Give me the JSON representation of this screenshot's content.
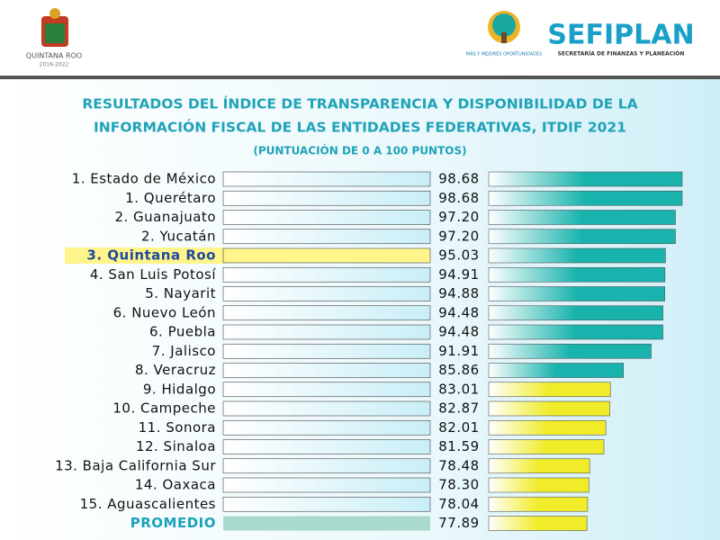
{
  "header": {
    "left_logo_text": "QUINTANA ROO",
    "left_logo_years": "2016-2022",
    "right_logo_text": "MÁS Y MEJORES OPORTUNIDADES",
    "brand": "SEFIPLAN",
    "brand_subtitle": "SECRETARÍA DE FINANZAS Y PLANEACIÓN"
  },
  "chart_data": {
    "type": "hbar",
    "title": [
      "RESULTADOS DEL ÍNDICE DE TRANSPARENCIA Y DISPONIBILIDAD DE LA",
      "INFORMACIÓN FISCAL DE LAS ENTIDADES FEDERATIVAS, ITDIF 2021"
    ],
    "subtitle": "(PUNTUACIÓN DE 0 A 100 PUNTOS)",
    "categories": [
      "1. Estado de México",
      "1. Querétaro",
      "2. Guanajuato",
      "2. Yucatán",
      "3. Quintana Roo",
      "4. San Luis Potosí",
      "5. Nayarit",
      "6. Nuevo León",
      "6. Puebla",
      "7. Jalisco",
      "8. Veracruz",
      "9. Hidalgo",
      "10. Campeche",
      "11. Sonora",
      "12. Sinaloa",
      "13. Baja California Sur",
      "14. Oaxaca",
      "15. Aguascalientes",
      "PROMEDIO"
    ],
    "values": [
      98.68,
      98.68,
      97.2,
      97.2,
      95.03,
      94.91,
      94.88,
      94.48,
      94.48,
      91.91,
      85.86,
      83.01,
      82.87,
      82.01,
      81.59,
      78.48,
      78.3,
      78.04,
      77.89
    ],
    "value_labels": [
      "98.68",
      "98.68",
      "97.20",
      "97.20",
      "95.03",
      "94.91",
      "94.88",
      "94.48",
      "94.48",
      "91.91",
      "85.86",
      "83.01",
      "82.87",
      "82.01",
      "81.59",
      "78.48",
      "78.30",
      "78.04",
      "77.89"
    ],
    "colors": [
      "#18b3ad",
      "#18b3ad",
      "#18b3ad",
      "#18b3ad",
      "#18b3ad",
      "#18b3ad",
      "#18b3ad",
      "#18b3ad",
      "#18b3ad",
      "#18b3ad",
      "#18b3ad",
      "#f0ec2a",
      "#f0ec2a",
      "#f0ec2a",
      "#f0ec2a",
      "#f0ec2a",
      "#f0ec2a",
      "#f0ec2a",
      "#f0ec2a"
    ],
    "row_styles": [
      "normal",
      "normal",
      "normal",
      "normal",
      "highlight",
      "normal",
      "normal",
      "normal",
      "normal",
      "normal",
      "normal",
      "normal",
      "normal",
      "normal",
      "normal",
      "normal",
      "normal",
      "normal",
      "average"
    ]
  }
}
